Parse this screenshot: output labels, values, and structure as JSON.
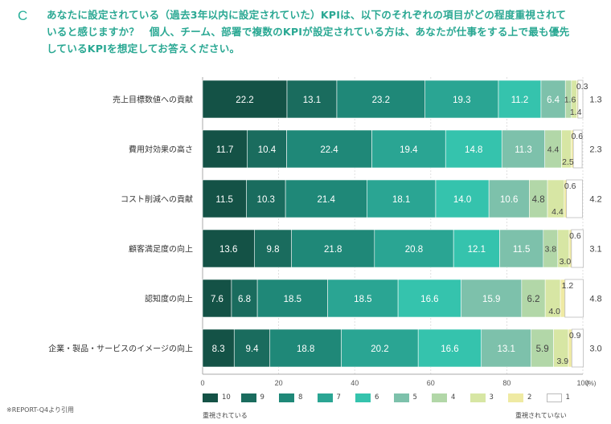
{
  "question": {
    "letter": "C",
    "lines": [
      "あなたに設定されている（過去3年以内に設定されていた）KPIは、以下のそれぞれの項目がどの程度重視されて",
      "いると感じますか？　個人、チーム、部署で複数のKPIが設定されている方は、あなたが仕事をする上で最も優先",
      "しているKPIを想定してお答えください。"
    ]
  },
  "footnote": "※REPORT-Q4より引用",
  "legend_notes": {
    "left": "重視されている",
    "right": "重視されていない"
  },
  "colors": {
    "10": "#145246",
    "9": "#1a6c5e",
    "8": "#1f8878",
    "7": "#2aa593",
    "6": "#35c3ad",
    "5": "#7dc1ab",
    "4": "#b2d7a8",
    "3": "#d7e6a4",
    "2": "#efeaa3",
    "1": "#ffffff"
  },
  "chart_data": {
    "type": "bar",
    "orientation": "horizontal",
    "stacked": true,
    "xlim": [
      0,
      100
    ],
    "x_ticks": [
      "0",
      "20",
      "40",
      "60",
      "80",
      "100"
    ],
    "x_unit": "(%)",
    "categories": [
      "売上目標数値への貢献",
      "費用対効果の高さ",
      "コスト削減への貢献",
      "顧客満足度の向上",
      "認知度の向上",
      "企業・製品・サービスのイメージの向上"
    ],
    "series": [
      {
        "name": "10",
        "values": [
          22.2,
          11.7,
          11.5,
          13.6,
          7.6,
          8.3
        ]
      },
      {
        "name": "9",
        "values": [
          13.1,
          10.4,
          10.3,
          9.8,
          6.8,
          9.4
        ]
      },
      {
        "name": "8",
        "values": [
          23.2,
          22.4,
          21.4,
          21.8,
          18.5,
          18.8
        ]
      },
      {
        "name": "7",
        "values": [
          19.3,
          19.4,
          18.1,
          20.8,
          18.5,
          20.2
        ]
      },
      {
        "name": "6",
        "values": [
          11.2,
          14.8,
          14.0,
          12.1,
          16.6,
          16.6
        ]
      },
      {
        "name": "5",
        "values": [
          6.4,
          11.3,
          10.6,
          11.5,
          15.9,
          13.1
        ]
      },
      {
        "name": "4",
        "values": [
          1.6,
          4.4,
          4.8,
          3.8,
          6.2,
          5.9
        ]
      },
      {
        "name": "3",
        "values": [
          1.4,
          2.5,
          4.4,
          3.0,
          4.0,
          3.9
        ]
      },
      {
        "name": "2",
        "values": [
          0.3,
          0.6,
          0.6,
          0.6,
          1.2,
          0.9
        ]
      },
      {
        "name": "1",
        "values": [
          1.3,
          2.3,
          4.2,
          3.1,
          4.8,
          3.0
        ]
      }
    ],
    "value_labels": [
      [
        "22.2",
        "13.1",
        "23.2",
        "19.3",
        "11.2",
        "6.4",
        "1.6",
        "1.4",
        "0.3",
        "1.3"
      ],
      [
        "11.7",
        "10.4",
        "22.4",
        "19.4",
        "14.8",
        "11.3",
        "4.4",
        "2.5",
        "0.6",
        "2.3"
      ],
      [
        "11.5",
        "10.3",
        "21.4",
        "18.1",
        "14.0",
        "10.6",
        "4.8",
        "4.4",
        "0.6",
        "4.2"
      ],
      [
        "13.6",
        "9.8",
        "21.8",
        "20.8",
        "12.1",
        "11.5",
        "3.8",
        "3.0",
        "0.6",
        "3.1"
      ],
      [
        "7.6",
        "6.8",
        "18.5",
        "18.5",
        "16.6",
        "15.9",
        "6.2",
        "4.0",
        "1.2",
        "4.8"
      ],
      [
        "8.3",
        "9.4",
        "18.8",
        "20.2",
        "16.6",
        "13.1",
        "5.9",
        "3.9",
        "0.9",
        "3.0"
      ]
    ],
    "legend": [
      "10",
      "9",
      "8",
      "7",
      "6",
      "5",
      "4",
      "3",
      "2",
      "1"
    ]
  }
}
